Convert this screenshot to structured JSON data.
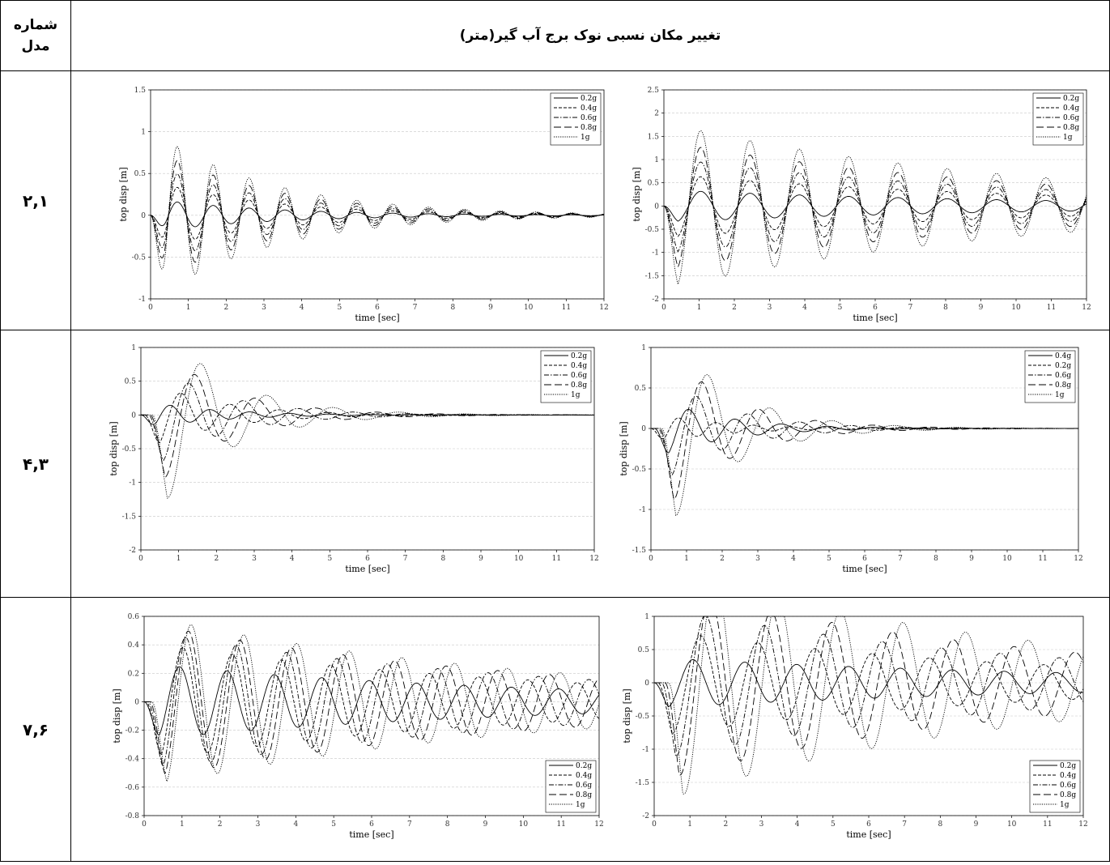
{
  "header": {
    "model_label": "شماره مدل",
    "model_label_line1": "شماره",
    "model_label_line2": "مدل",
    "title": "تغییر مکان نسبی نوک برج آب گیر(متر)"
  },
  "rows": [
    {
      "model": "۲,۱"
    },
    {
      "model": "۴,۳"
    },
    {
      "model": "۷,۶"
    }
  ],
  "chart_data": [
    {
      "id": "c1",
      "type": "line",
      "xlabel": "time [sec]",
      "ylabel": "top disp [m]",
      "xlim": [
        0,
        12
      ],
      "ylim": [
        -1,
        1.5
      ],
      "xticks": [
        0,
        1,
        2,
        3,
        4,
        5,
        6,
        7,
        8,
        9,
        10,
        11,
        12
      ],
      "yticks": [
        -1,
        -0.5,
        0,
        0.5,
        1,
        1.5
      ],
      "grid": true,
      "legend": "top-right",
      "series": [
        {
          "name": "0.2g",
          "amp": 0.2,
          "period": 0.95,
          "delay": 0.0,
          "decay": 0.32
        },
        {
          "name": "0.4g",
          "amp": 0.42,
          "period": 0.95,
          "delay": 0.0,
          "decay": 0.32
        },
        {
          "name": "0.6g",
          "amp": 0.62,
          "period": 0.95,
          "delay": 0.0,
          "decay": 0.32
        },
        {
          "name": "0.8g",
          "amp": 0.82,
          "period": 0.95,
          "delay": 0.0,
          "decay": 0.32
        },
        {
          "name": "1g",
          "amp": 1.03,
          "period": 0.95,
          "delay": 0.0,
          "decay": 0.32
        }
      ]
    },
    {
      "id": "c2",
      "type": "line",
      "xlabel": "time [sec]",
      "ylabel": "top disp [m]",
      "xlim": [
        0,
        12
      ],
      "ylim": [
        -2,
        2.5
      ],
      "xticks": [
        0,
        1,
        2,
        3,
        4,
        5,
        6,
        7,
        8,
        9,
        10,
        11,
        12
      ],
      "yticks": [
        -2,
        -1.5,
        -1,
        -0.5,
        0,
        0.5,
        1,
        1.5,
        2,
        2.5
      ],
      "grid": true,
      "legend": "top-right",
      "series": [
        {
          "name": "0.2g",
          "amp": 0.35,
          "period": 1.4,
          "delay": 0.0,
          "decay": 0.1
        },
        {
          "name": "0.4g",
          "amp": 0.7,
          "period": 1.4,
          "delay": 0.0,
          "decay": 0.1
        },
        {
          "name": "0.6g",
          "amp": 1.05,
          "period": 1.4,
          "delay": 0.0,
          "decay": 0.1
        },
        {
          "name": "0.8g",
          "amp": 1.4,
          "period": 1.4,
          "delay": 0.0,
          "decay": 0.1
        },
        {
          "name": "1g",
          "amp": 1.8,
          "period": 1.4,
          "delay": 0.0,
          "decay": 0.1
        }
      ]
    },
    {
      "id": "c3",
      "type": "line",
      "xlabel": "time [sec]",
      "ylabel": "top disp [m]",
      "xlim": [
        0,
        12
      ],
      "ylim": [
        -2,
        1
      ],
      "xticks": [
        0,
        1,
        2,
        3,
        4,
        5,
        6,
        7,
        8,
        9,
        10,
        11,
        12
      ],
      "yticks": [
        -2,
        -1.5,
        -1,
        -0.5,
        0,
        0.5,
        1
      ],
      "grid": true,
      "legend": "top-right",
      "series": [
        {
          "name": "0.2g",
          "amp": 0.22,
          "period": 1.05,
          "delay": 0.0,
          "decay": 0.55
        },
        {
          "name": "0.4g",
          "amp": 0.55,
          "period": 1.3,
          "delay": 0.1,
          "decay": 0.55
        },
        {
          "name": "0.6g",
          "amp": 0.85,
          "period": 1.45,
          "delay": 0.2,
          "decay": 0.55
        },
        {
          "name": "0.8g",
          "amp": 1.15,
          "period": 1.6,
          "delay": 0.25,
          "decay": 0.55
        },
        {
          "name": "1g",
          "amp": 1.55,
          "period": 1.75,
          "delay": 0.3,
          "decay": 0.55
        }
      ]
    },
    {
      "id": "c4",
      "type": "line",
      "xlabel": "time [sec]",
      "ylabel": "top disp [m]",
      "xlim": [
        0,
        12
      ],
      "ylim": [
        -1.5,
        1
      ],
      "xticks": [
        0,
        1,
        2,
        3,
        4,
        5,
        6,
        7,
        8,
        9,
        10,
        11,
        12
      ],
      "yticks": [
        -1.5,
        -1,
        -0.5,
        0,
        0.5,
        1
      ],
      "grid": true,
      "legend": "top-right",
      "series": [
        {
          "name": "0.4g",
          "amp": 0.4,
          "period": 1.3,
          "delay": 0.1,
          "decay": 0.55
        },
        {
          "name": "0.2g",
          "amp": 0.2,
          "period": 1.05,
          "delay": 0.0,
          "decay": 0.55
        },
        {
          "name": "0.6g",
          "amp": 0.72,
          "period": 1.45,
          "delay": 0.2,
          "decay": 0.55
        },
        {
          "name": "0.8g",
          "amp": 1.1,
          "period": 1.6,
          "delay": 0.25,
          "decay": 0.55
        },
        {
          "name": "1g",
          "amp": 1.35,
          "period": 1.75,
          "delay": 0.3,
          "decay": 0.55
        }
      ]
    },
    {
      "id": "c5",
      "type": "line",
      "xlabel": "time [sec]",
      "ylabel": "top disp [m]",
      "xlim": [
        0,
        12
      ],
      "ylim": [
        -0.8,
        0.6
      ],
      "xticks": [
        0,
        1,
        2,
        3,
        4,
        5,
        6,
        7,
        8,
        9,
        10,
        11,
        12
      ],
      "yticks": [
        -0.8,
        -0.6,
        -0.4,
        -0.2,
        0,
        0.2,
        0.4,
        0.6
      ],
      "grid": true,
      "legend": "bottom-right",
      "series": [
        {
          "name": "0.2g",
          "amp": 0.27,
          "period": 1.25,
          "delay": 0.0,
          "decay": 0.1
        },
        {
          "name": "0.4g",
          "amp": 0.42,
          "period": 1.3,
          "delay": 0.05,
          "decay": 0.1
        },
        {
          "name": "0.6g",
          "amp": 0.5,
          "period": 1.33,
          "delay": 0.1,
          "decay": 0.1
        },
        {
          "name": "0.8g",
          "amp": 0.55,
          "period": 1.36,
          "delay": 0.15,
          "decay": 0.1
        },
        {
          "name": "1g",
          "amp": 0.6,
          "period": 1.39,
          "delay": 0.2,
          "decay": 0.1
        }
      ]
    },
    {
      "id": "c6",
      "type": "line",
      "xlabel": "time [sec]",
      "ylabel": "top disp [m]",
      "xlim": [
        0,
        12
      ],
      "ylim": [
        -2,
        1
      ],
      "xticks": [
        0,
        1,
        2,
        3,
        4,
        5,
        6,
        7,
        8,
        9,
        10,
        11,
        12
      ],
      "yticks": [
        -2,
        -1.5,
        -1,
        -0.5,
        0,
        0.5,
        1
      ],
      "grid": true,
      "legend": "bottom-right",
      "series": [
        {
          "name": "0.2g",
          "amp": 0.38,
          "period": 1.45,
          "delay": 0.0,
          "decay": 0.08
        },
        {
          "name": "0.4g",
          "amp": 0.8,
          "period": 1.6,
          "delay": 0.1,
          "decay": 0.1
        },
        {
          "name": "0.6g",
          "amp": 1.15,
          "period": 1.65,
          "delay": 0.2,
          "decay": 0.1
        },
        {
          "name": "0.8g",
          "amp": 1.45,
          "period": 1.7,
          "delay": 0.3,
          "decay": 0.1
        },
        {
          "name": "1g",
          "amp": 1.75,
          "period": 1.75,
          "delay": 0.4,
          "decay": 0.1
        }
      ]
    }
  ]
}
